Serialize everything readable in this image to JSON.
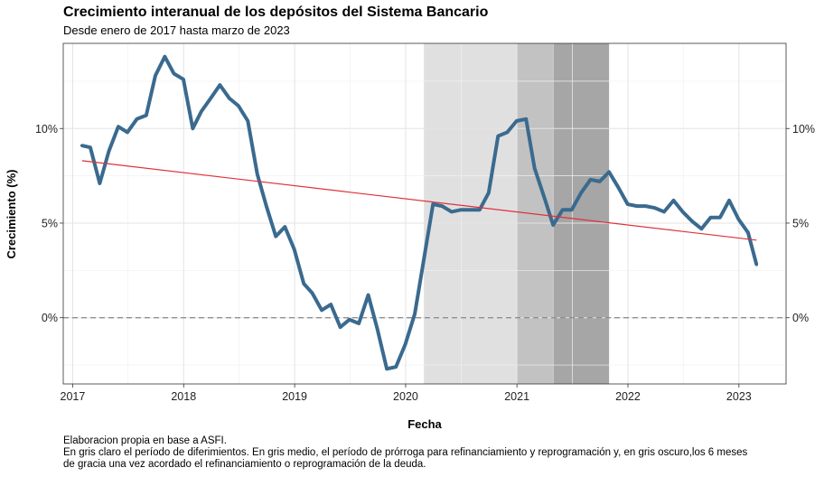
{
  "chart_data": {
    "type": "line",
    "title": "Crecimiento interanual de los depósitos del Sistema Bancario",
    "subtitle": "Desde enero de 2017 hasta marzo de 2023",
    "xlabel": "Fecha",
    "ylabel": "Crecimiento (%)",
    "x_ticks": [
      "2017",
      "2018",
      "2019",
      "2020",
      "2021",
      "2022",
      "2023"
    ],
    "y_ticks": [
      "0%",
      "5%",
      "10%"
    ],
    "xlim": [
      "2016-12-01",
      "2023-06-05"
    ],
    "ylim": [
      -3.5,
      14.5
    ],
    "grid": true,
    "colors": {
      "series": "#3a6a8f",
      "trend": "#e0303a",
      "zero_line": "#909090",
      "shade_light": "#e0e0e0",
      "shade_medium": "#c2c2c2",
      "shade_dark": "#a6a6a6"
    },
    "shaded_periods": [
      {
        "start": "2020-03-01",
        "end": "2020-12-31",
        "shade": "light"
      },
      {
        "start": "2021-01-01",
        "end": "2021-04-30",
        "shade": "medium"
      },
      {
        "start": "2021-05-01",
        "end": "2021-10-31",
        "shade": "dark"
      }
    ],
    "trend_line": {
      "start": {
        "date": "2017-02-01",
        "value": 8.3
      },
      "end": {
        "date": "2023-02-28",
        "value": 4.1
      }
    },
    "series": [
      {
        "points": [
          {
            "date": "2017-01-31",
            "value": 9.1
          },
          {
            "date": "2017-02-28",
            "value": 9.0
          },
          {
            "date": "2017-03-31",
            "value": 7.1
          },
          {
            "date": "2017-04-30",
            "value": 8.8
          },
          {
            "date": "2017-05-31",
            "value": 10.1
          },
          {
            "date": "2017-06-30",
            "value": 9.8
          },
          {
            "date": "2017-07-31",
            "value": 10.5
          },
          {
            "date": "2017-08-31",
            "value": 10.7
          },
          {
            "date": "2017-09-30",
            "value": 12.8
          },
          {
            "date": "2017-10-31",
            "value": 13.8
          },
          {
            "date": "2017-11-30",
            "value": 12.9
          },
          {
            "date": "2017-12-31",
            "value": 12.6
          },
          {
            "date": "2018-01-31",
            "value": 10.0
          },
          {
            "date": "2018-02-28",
            "value": 10.9
          },
          {
            "date": "2018-03-31",
            "value": 11.6
          },
          {
            "date": "2018-04-30",
            "value": 12.3
          },
          {
            "date": "2018-05-31",
            "value": 11.6
          },
          {
            "date": "2018-06-30",
            "value": 11.2
          },
          {
            "date": "2018-07-31",
            "value": 10.4
          },
          {
            "date": "2018-08-31",
            "value": 7.6
          },
          {
            "date": "2018-09-30",
            "value": 5.9
          },
          {
            "date": "2018-10-31",
            "value": 4.3
          },
          {
            "date": "2018-11-30",
            "value": 4.8
          },
          {
            "date": "2018-12-31",
            "value": 3.6
          },
          {
            "date": "2019-01-31",
            "value": 1.8
          },
          {
            "date": "2019-02-28",
            "value": 1.3
          },
          {
            "date": "2019-03-31",
            "value": 0.4
          },
          {
            "date": "2019-04-30",
            "value": 0.7
          },
          {
            "date": "2019-05-31",
            "value": -0.5
          },
          {
            "date": "2019-06-30",
            "value": -0.1
          },
          {
            "date": "2019-07-31",
            "value": -0.3
          },
          {
            "date": "2019-08-31",
            "value": 1.2
          },
          {
            "date": "2019-09-30",
            "value": -0.6
          },
          {
            "date": "2019-10-31",
            "value": -2.7
          },
          {
            "date": "2019-11-30",
            "value": -2.6
          },
          {
            "date": "2019-12-31",
            "value": -1.4
          },
          {
            "date": "2020-01-31",
            "value": 0.2
          },
          {
            "date": "2020-02-29",
            "value": 3.0
          },
          {
            "date": "2020-03-31",
            "value": 6.0
          },
          {
            "date": "2020-04-30",
            "value": 5.9
          },
          {
            "date": "2020-05-31",
            "value": 5.6
          },
          {
            "date": "2020-06-30",
            "value": 5.7
          },
          {
            "date": "2020-07-31",
            "value": 5.7
          },
          {
            "date": "2020-08-31",
            "value": 5.7
          },
          {
            "date": "2020-09-30",
            "value": 6.6
          },
          {
            "date": "2020-10-31",
            "value": 9.6
          },
          {
            "date": "2020-11-30",
            "value": 9.8
          },
          {
            "date": "2020-12-31",
            "value": 10.4
          },
          {
            "date": "2021-01-31",
            "value": 10.5
          },
          {
            "date": "2021-02-28",
            "value": 7.9
          },
          {
            "date": "2021-03-31",
            "value": 6.4
          },
          {
            "date": "2021-04-30",
            "value": 4.9
          },
          {
            "date": "2021-05-31",
            "value": 5.7
          },
          {
            "date": "2021-06-30",
            "value": 5.7
          },
          {
            "date": "2021-07-31",
            "value": 6.6
          },
          {
            "date": "2021-08-31",
            "value": 7.3
          },
          {
            "date": "2021-09-30",
            "value": 7.2
          },
          {
            "date": "2021-10-31",
            "value": 7.7
          },
          {
            "date": "2021-11-30",
            "value": 6.9
          },
          {
            "date": "2021-12-31",
            "value": 6.0
          },
          {
            "date": "2022-01-31",
            "value": 5.9
          },
          {
            "date": "2022-02-28",
            "value": 5.9
          },
          {
            "date": "2022-03-31",
            "value": 5.8
          },
          {
            "date": "2022-04-30",
            "value": 5.6
          },
          {
            "date": "2022-05-31",
            "value": 6.2
          },
          {
            "date": "2022-06-30",
            "value": 5.6
          },
          {
            "date": "2022-07-31",
            "value": 5.1
          },
          {
            "date": "2022-08-31",
            "value": 4.7
          },
          {
            "date": "2022-09-30",
            "value": 5.3
          },
          {
            "date": "2022-10-31",
            "value": 5.3
          },
          {
            "date": "2022-11-30",
            "value": 6.2
          },
          {
            "date": "2022-12-31",
            "value": 5.2
          },
          {
            "date": "2023-01-31",
            "value": 4.5
          },
          {
            "date": "2023-02-28",
            "value": 2.8
          }
        ]
      }
    ]
  },
  "caption": {
    "line1": "Elaboracion propia en base a ASFI.",
    "line2": "En gris claro el período de diferimientos. En gris medio, el período de prórroga para refinanciamiento y reprogramación y, en gris oscuro,los 6 meses",
    "line3": "de gracia una vez acordado el refinanciamiento o reprogramación de la deuda."
  }
}
